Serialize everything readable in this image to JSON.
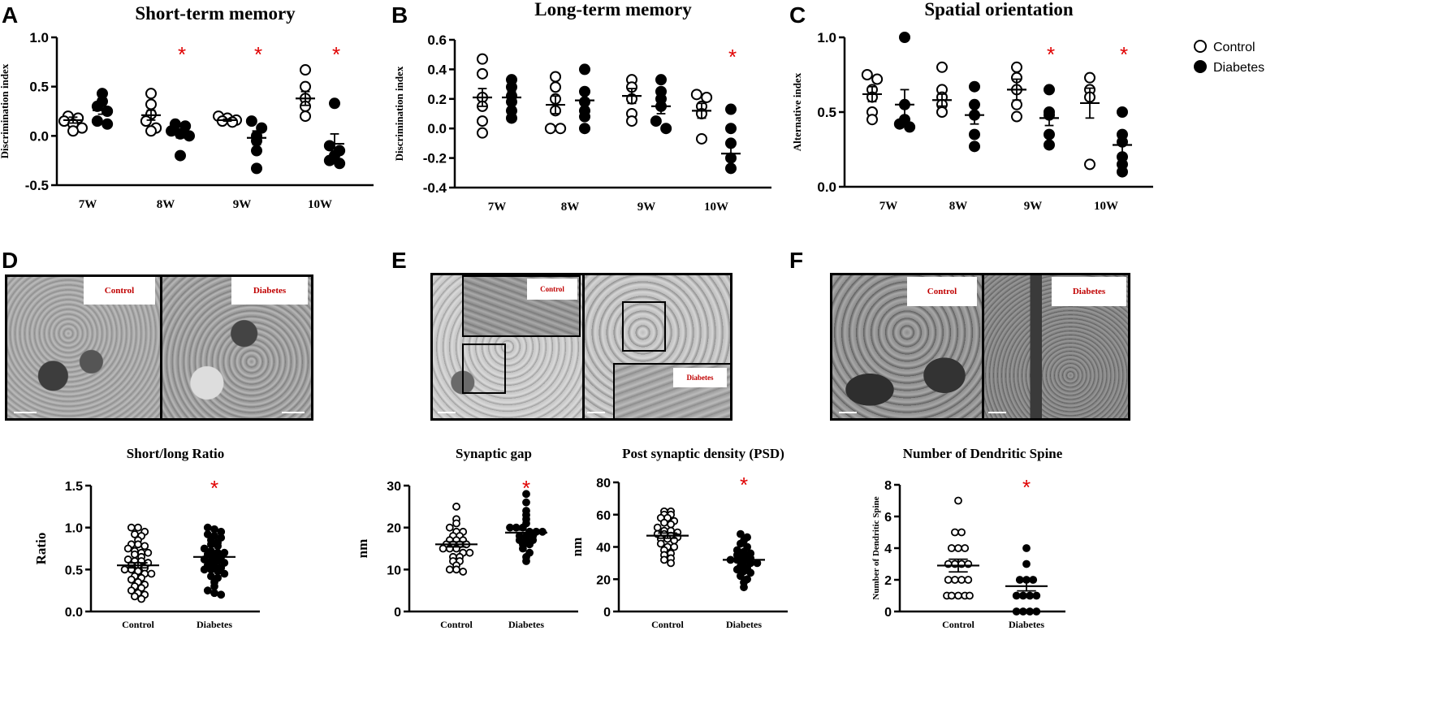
{
  "panel_letters": [
    "A",
    "B",
    "C",
    "D",
    "E",
    "F"
  ],
  "legend": {
    "control": "Control",
    "diabetes": "Diabetes"
  },
  "colors": {
    "control_fill": "#ffffff",
    "diabetes_fill": "#000000",
    "significance": "#e00000",
    "em_label_text": "#c00000"
  },
  "em_labels": {
    "D": {
      "left": "Control",
      "right": "Diabetes"
    },
    "E": {
      "top": "Control",
      "bottom": "Diabetes"
    },
    "F": {
      "left": "Control",
      "right": "Diabetes"
    }
  },
  "chart_data": [
    {
      "id": "A",
      "type": "scatter",
      "title": "Short-term memory",
      "ylabel": "Discrimination index",
      "ylim": [
        -0.5,
        1.0
      ],
      "yticks": [
        -0.5,
        0.0,
        0.5,
        1.0
      ],
      "ytick_labels": [
        "-0.5",
        "0.0",
        "0.5",
        "1.0"
      ],
      "categories": [
        "7W",
        "8W",
        "9W",
        "10W"
      ],
      "significant": [
        false,
        true,
        true,
        true
      ],
      "series": [
        {
          "name": "Control",
          "means": [
            0.16,
            0.21,
            0.16,
            0.38
          ],
          "sems": [
            0.03,
            0.05,
            0.01,
            0.07
          ],
          "points": [
            [
              0.2,
              0.18,
              0.15,
              0.12,
              0.08,
              0.05
            ],
            [
              0.43,
              0.32,
              0.22,
              0.15,
              0.08,
              0.05
            ],
            [
              0.2,
              0.18,
              0.16,
              0.15,
              0.14
            ],
            [
              0.67,
              0.5,
              0.38,
              0.3,
              0.2
            ]
          ]
        },
        {
          "name": "Diabetes",
          "means": [
            0.26,
            0.02,
            -0.02,
            -0.08
          ],
          "sems": [
            0.04,
            0.04,
            0.07,
            0.1
          ],
          "points": [
            [
              0.43,
              0.35,
              0.3,
              0.25,
              0.15,
              0.12
            ],
            [
              0.12,
              0.1,
              0.05,
              0.02,
              0.0,
              -0.2
            ],
            [
              0.15,
              0.08,
              0.0,
              -0.05,
              -0.15,
              -0.33
            ],
            [
              0.33,
              -0.1,
              -0.15,
              -0.2,
              -0.25,
              -0.28
            ]
          ]
        }
      ]
    },
    {
      "id": "B",
      "type": "scatter",
      "title": "Long-term memory",
      "ylabel": "Discrimination index",
      "ylim": [
        -0.4,
        0.6
      ],
      "yticks": [
        -0.4,
        -0.2,
        0.0,
        0.2,
        0.4,
        0.6
      ],
      "ytick_labels": [
        "-0.4",
        "-0.2",
        "0.0",
        "0.2",
        "0.4",
        "0.6"
      ],
      "categories": [
        "7W",
        "8W",
        "9W",
        "10W"
      ],
      "significant": [
        false,
        false,
        false,
        true
      ],
      "series": [
        {
          "name": "Control",
          "means": [
            0.21,
            0.16,
            0.22,
            0.12
          ],
          "sems": [
            0.06,
            0.06,
            0.05,
            0.05
          ],
          "points": [
            [
              0.47,
              0.37,
              0.21,
              0.15,
              0.05,
              -0.03
            ],
            [
              0.35,
              0.28,
              0.2,
              0.12,
              0.0,
              0.0
            ],
            [
              0.33,
              0.28,
              0.2,
              0.1,
              0.05
            ],
            [
              0.23,
              0.21,
              0.15,
              0.1,
              -0.07
            ]
          ]
        },
        {
          "name": "Diabetes",
          "means": [
            0.21,
            0.19,
            0.15,
            -0.17
          ],
          "sems": [
            0.04,
            0.05,
            0.05,
            0.08
          ],
          "points": [
            [
              0.33,
              0.28,
              0.22,
              0.18,
              0.12,
              0.07
            ],
            [
              0.4,
              0.25,
              0.18,
              0.12,
              0.08,
              0.0
            ],
            [
              0.33,
              0.25,
              0.2,
              0.15,
              0.05,
              0.0
            ],
            [
              0.13,
              0.0,
              -0.1,
              -0.2,
              -0.27
            ]
          ]
        }
      ]
    },
    {
      "id": "C",
      "type": "scatter",
      "title": "Spatial orientation",
      "ylabel": "Alternative index",
      "ylim": [
        0.0,
        1.0
      ],
      "yticks": [
        0.0,
        0.5,
        1.0
      ],
      "ytick_labels": [
        "0.0",
        "0.5",
        "1.0"
      ],
      "categories": [
        "7W",
        "8W",
        "9W",
        "10W"
      ],
      "significant": [
        false,
        false,
        true,
        true
      ],
      "series": [
        {
          "name": "Control",
          "means": [
            0.62,
            0.58,
            0.65,
            0.56
          ],
          "sems": [
            0.05,
            0.04,
            0.07,
            0.1
          ],
          "points": [
            [
              0.75,
              0.72,
              0.65,
              0.6,
              0.5,
              0.45
            ],
            [
              0.8,
              0.65,
              0.6,
              0.55,
              0.5
            ],
            [
              0.8,
              0.73,
              0.65,
              0.55,
              0.47
            ],
            [
              0.73,
              0.65,
              0.6,
              0.15
            ]
          ]
        },
        {
          "name": "Diabetes",
          "means": [
            0.55,
            0.48,
            0.46,
            0.28
          ],
          "sems": [
            0.1,
            0.06,
            0.05,
            0.06
          ],
          "points": [
            [
              1.0,
              0.55,
              0.45,
              0.42,
              0.4
            ],
            [
              0.67,
              0.55,
              0.48,
              0.35,
              0.27
            ],
            [
              0.65,
              0.5,
              0.48,
              0.35,
              0.28
            ],
            [
              0.5,
              0.35,
              0.3,
              0.2,
              0.15,
              0.1
            ]
          ]
        }
      ]
    },
    {
      "id": "D-chart",
      "type": "scatter",
      "title": "Short/long Ratio",
      "ylabel": "Ratio",
      "ylim": [
        0.0,
        1.5
      ],
      "yticks": [
        0.0,
        0.5,
        1.0,
        1.5
      ],
      "ytick_labels": [
        "0.0",
        "0.5",
        "1.0",
        "1.5"
      ],
      "categories": [
        "Control",
        "Diabetes"
      ],
      "significant": [
        false,
        true
      ],
      "series": [
        {
          "name": "Control",
          "mean": 0.55,
          "sem": 0.03,
          "points": [
            1.0,
            1.0,
            0.95,
            0.92,
            0.9,
            0.85,
            0.8,
            0.8,
            0.78,
            0.75,
            0.72,
            0.7,
            0.7,
            0.68,
            0.65,
            0.62,
            0.6,
            0.6,
            0.58,
            0.55,
            0.55,
            0.52,
            0.5,
            0.5,
            0.48,
            0.45,
            0.45,
            0.42,
            0.4,
            0.38,
            0.35,
            0.32,
            0.3,
            0.28,
            0.25,
            0.22,
            0.2,
            0.18,
            0.15
          ]
        },
        {
          "name": "Diabetes",
          "mean": 0.65,
          "sem": 0.03,
          "points": [
            1.0,
            0.98,
            0.95,
            0.92,
            0.9,
            0.88,
            0.85,
            0.82,
            0.8,
            0.78,
            0.75,
            0.72,
            0.7,
            0.7,
            0.68,
            0.65,
            0.65,
            0.62,
            0.6,
            0.6,
            0.58,
            0.55,
            0.55,
            0.52,
            0.5,
            0.5,
            0.48,
            0.45,
            0.42,
            0.4,
            0.35,
            0.3,
            0.25,
            0.22,
            0.2
          ]
        }
      ]
    },
    {
      "id": "E-gap",
      "type": "scatter",
      "title": "Synaptic gap",
      "ylabel": "nm",
      "ylim": [
        0,
        30
      ],
      "yticks": [
        0,
        10,
        20,
        30
      ],
      "ytick_labels": [
        "0",
        "10",
        "20",
        "30"
      ],
      "categories": [
        "Control",
        "Diabetes"
      ],
      "significant": [
        false,
        true
      ],
      "series": [
        {
          "name": "Control",
          "mean": 16,
          "sem": 0.6,
          "points": [
            25,
            22,
            21,
            20,
            19,
            19,
            18,
            18,
            17,
            17,
            17,
            16,
            16,
            16,
            16,
            15,
            15,
            15,
            14,
            14,
            13,
            13,
            12,
            12,
            11,
            10,
            10,
            9.5
          ]
        },
        {
          "name": "Diabetes",
          "mean": 18.8,
          "sem": 0.6,
          "points": [
            28,
            26,
            24,
            23,
            22,
            21,
            20,
            20,
            20,
            19,
            19,
            19,
            18,
            18,
            18,
            17,
            17,
            17,
            16,
            16,
            15,
            14,
            13,
            12
          ]
        }
      ]
    },
    {
      "id": "E-psd",
      "type": "scatter",
      "title": "Post synaptic density (PSD)",
      "ylabel": "nm",
      "ylim": [
        0,
        80
      ],
      "yticks": [
        0,
        20,
        40,
        60,
        80
      ],
      "ytick_labels": [
        "0",
        "20",
        "40",
        "60",
        "80"
      ],
      "categories": [
        "Control",
        "Diabetes"
      ],
      "significant": [
        false,
        true
      ],
      "series": [
        {
          "name": "Control",
          "mean": 47,
          "sem": 1.6,
          "points": [
            62,
            62,
            60,
            60,
            58,
            58,
            56,
            55,
            54,
            52,
            50,
            50,
            49,
            48,
            48,
            47,
            46,
            45,
            45,
            44,
            42,
            40,
            40,
            38,
            36,
            35,
            33,
            32,
            30
          ]
        },
        {
          "name": "Diabetes",
          "mean": 32,
          "sem": 1.5,
          "points": [
            48,
            46,
            44,
            42,
            40,
            38,
            37,
            36,
            35,
            34,
            33,
            32,
            32,
            31,
            30,
            30,
            28,
            27,
            26,
            25,
            24,
            22,
            20,
            18,
            15
          ]
        }
      ]
    },
    {
      "id": "F-chart",
      "type": "scatter",
      "title": "Number of Dendritic Spine",
      "ylabel": "Number of Dendritic Spine",
      "ylim": [
        0,
        8
      ],
      "yticks": [
        0,
        2,
        4,
        6,
        8
      ],
      "ytick_labels": [
        "0",
        "2",
        "4",
        "6",
        "8"
      ],
      "categories": [
        "Control",
        "Diabetes"
      ],
      "significant": [
        false,
        true
      ],
      "series": [
        {
          "name": "Control",
          "mean": 2.9,
          "sem": 0.4,
          "points": [
            7,
            5,
            5,
            4,
            4,
            4,
            3,
            3,
            3,
            3,
            2,
            2,
            2,
            2,
            1,
            1,
            1,
            1,
            1
          ]
        },
        {
          "name": "Diabetes",
          "mean": 1.6,
          "sem": 0.3,
          "points": [
            4,
            3,
            2,
            2,
            2,
            1,
            1,
            1,
            1,
            0,
            0,
            0,
            0
          ]
        }
      ]
    }
  ]
}
